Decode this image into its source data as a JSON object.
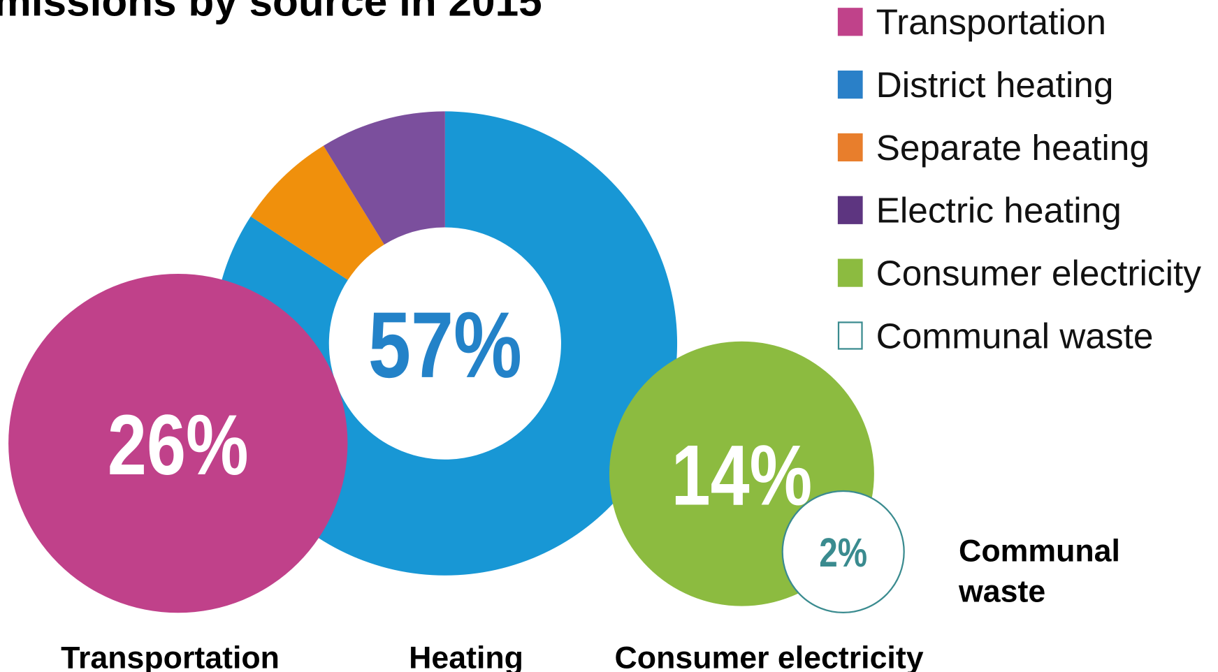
{
  "chart_data": [
    {
      "type": "donut",
      "title": "missions by source in 2015",
      "categories": [
        "District heating",
        "Separate heating",
        "Electric heating"
      ],
      "values": [
        48,
        4,
        5
      ],
      "colors": [
        "#1897d5",
        "#f0900c",
        "#7b4f9d"
      ]
    },
    {
      "type": "bubble",
      "categories": [
        "Transportation",
        "Heating",
        "Consumer electricity",
        "Communal waste"
      ],
      "values": [
        26,
        57,
        14,
        2
      ],
      "value_labels": [
        "26%",
        "57%",
        "14%",
        "2%"
      ],
      "colors": [
        "#c0418a",
        "#1897d5",
        "#8cbb40",
        "#ffffff"
      ],
      "legend": [
        {
          "name": "Transportation",
          "color": "#c0428a"
        },
        {
          "name": "District heating",
          "color": "#2a80c8"
        },
        {
          "name": "Separate heating",
          "color": "#e87e2c"
        },
        {
          "name": "Electric heating",
          "color": "#5d3580"
        },
        {
          "name": "Consumer electricity",
          "color": "#8cbb40"
        },
        {
          "name": "Communal waste",
          "color": "#ffffff"
        }
      ]
    }
  ]
}
